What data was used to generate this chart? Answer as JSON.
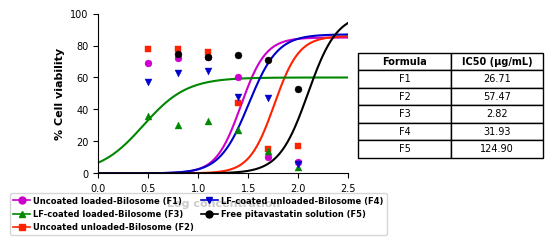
{
  "title": "",
  "xlabel": "Log concentration",
  "ylabel": "% Cell viability",
  "xlim": [
    0.0,
    2.5
  ],
  "ylim": [
    0,
    100
  ],
  "xticks": [
    0.0,
    0.5,
    1.0,
    1.5,
    2.0,
    2.5
  ],
  "yticks": [
    0,
    20,
    40,
    60,
    80,
    100
  ],
  "formulas": [
    "F1",
    "F2",
    "F3",
    "F4",
    "F5"
  ],
  "ic50": [
    26.71,
    57.47,
    2.82,
    31.93,
    124.9
  ],
  "series": [
    {
      "label": "Uncoated loaded-Bilosome (F1)",
      "color": "#CC00CC",
      "marker": "o",
      "marker_size": 5,
      "line_color": "#CC00CC",
      "ic50_log": 1.4265,
      "hill": 3.5,
      "top": 85,
      "bottom": 0,
      "scatter_x": [
        0.5,
        0.8,
        1.1,
        1.4,
        1.7,
        2.0
      ],
      "scatter_y": [
        69,
        72,
        73,
        60,
        10,
        7
      ]
    },
    {
      "label": "Uncoated unloaded-Bilosome (F2)",
      "color": "#FF2200",
      "marker": "s",
      "marker_size": 5,
      "line_color": "#FF2200",
      "ic50_log": 1.7595,
      "hill": 3.5,
      "top": 86,
      "bottom": 0,
      "scatter_x": [
        0.5,
        0.8,
        1.1,
        1.4,
        1.7,
        2.0
      ],
      "scatter_y": [
        78,
        78,
        76,
        44,
        15,
        17
      ]
    },
    {
      "label": "LF-coated loaded-Bilosome (F3)",
      "color": "#008800",
      "marker": "^",
      "marker_size": 5,
      "line_color": "#008800",
      "ic50_log": 0.4502,
      "hill": 2.0,
      "top": 60,
      "bottom": 0,
      "scatter_x": [
        0.5,
        0.8,
        1.1,
        1.4,
        1.7,
        2.0
      ],
      "scatter_y": [
        36,
        30,
        33,
        27,
        14,
        4
      ]
    },
    {
      "label": "LF-coated unloaded-Bilosome (F4)",
      "color": "#0000CC",
      "marker": "v",
      "marker_size": 5,
      "line_color": "#0000CC",
      "ic50_log": 1.5042,
      "hill": 3.0,
      "top": 87,
      "bottom": 0,
      "scatter_x": [
        0.5,
        0.8,
        1.1,
        1.4,
        1.7,
        2.0
      ],
      "scatter_y": [
        57,
        63,
        64,
        48,
        47,
        6
      ]
    },
    {
      "label": "Free pitavastatin solution (F5)",
      "color": "#000000",
      "marker": "o",
      "marker_size": 5,
      "line_color": "#000000",
      "ic50_log": 2.0964,
      "hill": 3.0,
      "top": 100,
      "bottom": 0,
      "scatter_x": [
        0.8,
        1.1,
        1.4,
        1.7,
        2.0
      ],
      "scatter_y": [
        75,
        73,
        74,
        71,
        53
      ]
    }
  ],
  "table_formulas": [
    "F1",
    "F2",
    "F3",
    "F4",
    "F5"
  ],
  "table_ic50": [
    "26.71",
    "57.47",
    "2.82",
    "31.93",
    "124.90"
  ],
  "table_col_labels": [
    "Formula",
    "IC50 (µg/mL)"
  ],
  "legend_items": [
    {
      "label": "Uncoated loaded-Bilosome (F1)",
      "color": "#CC00CC",
      "marker": "o"
    },
    {
      "label": "LF-coated loaded-Bilosome (F3)",
      "color": "#008800",
      "marker": "^"
    },
    {
      "label": "Uncoated unloaded-Bilosome (F2)",
      "color": "#FF2200",
      "marker": "s"
    },
    {
      "label": "LF-coated unloaded-Bilosome (F4)",
      "color": "#0000CC",
      "marker": "v"
    },
    {
      "label": "Free pitavastatin solution (F5)",
      "color": "#000000",
      "marker": "o"
    }
  ]
}
